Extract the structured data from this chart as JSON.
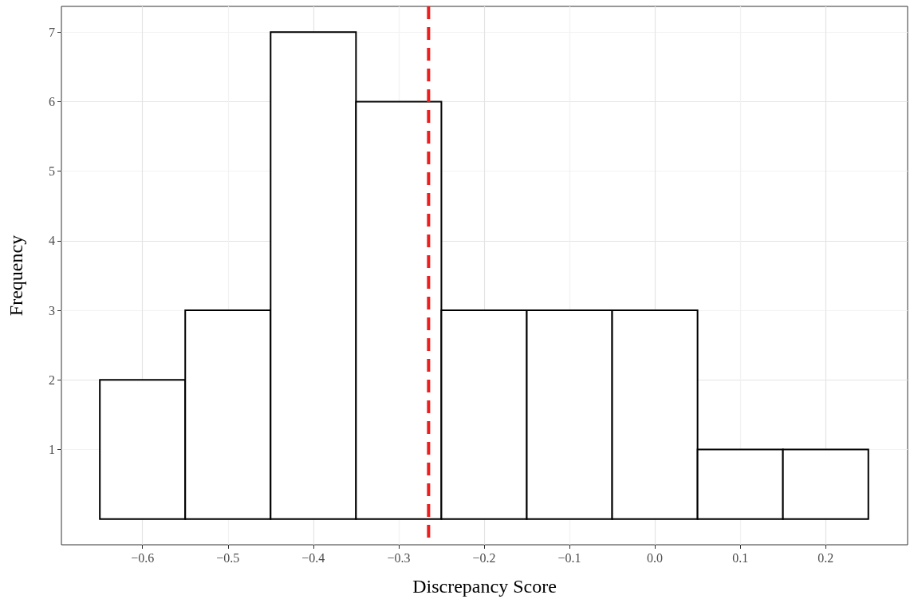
{
  "chart_data": {
    "type": "histogram",
    "xlabel": "Discrepancy Score",
    "ylabel": "Frequency",
    "bins": [
      -0.65,
      -0.55,
      -0.45,
      -0.35,
      -0.25,
      -0.15,
      -0.05,
      0.05,
      0.15,
      0.25
    ],
    "values": [
      2,
      3,
      7,
      6,
      3,
      3,
      3,
      1,
      1
    ],
    "color": "#ffffff",
    "xlim": [
      -0.695,
      0.296
    ],
    "xticks": [
      -0.6,
      -0.5,
      -0.4,
      -0.3,
      -0.2,
      -0.1,
      {
        "value": 0,
        "label": "0.0"
      },
      0.1,
      0.2
    ],
    "ylim": [
      -0.37,
      7.37
    ],
    "yticks": [
      1,
      2,
      3,
      4,
      5,
      6,
      7
    ],
    "grid": true,
    "ref_lines": [
      {
        "axis": "x",
        "value": -0.265,
        "color": "#ee1c1c",
        "line_style": "dashed"
      }
    ]
  }
}
